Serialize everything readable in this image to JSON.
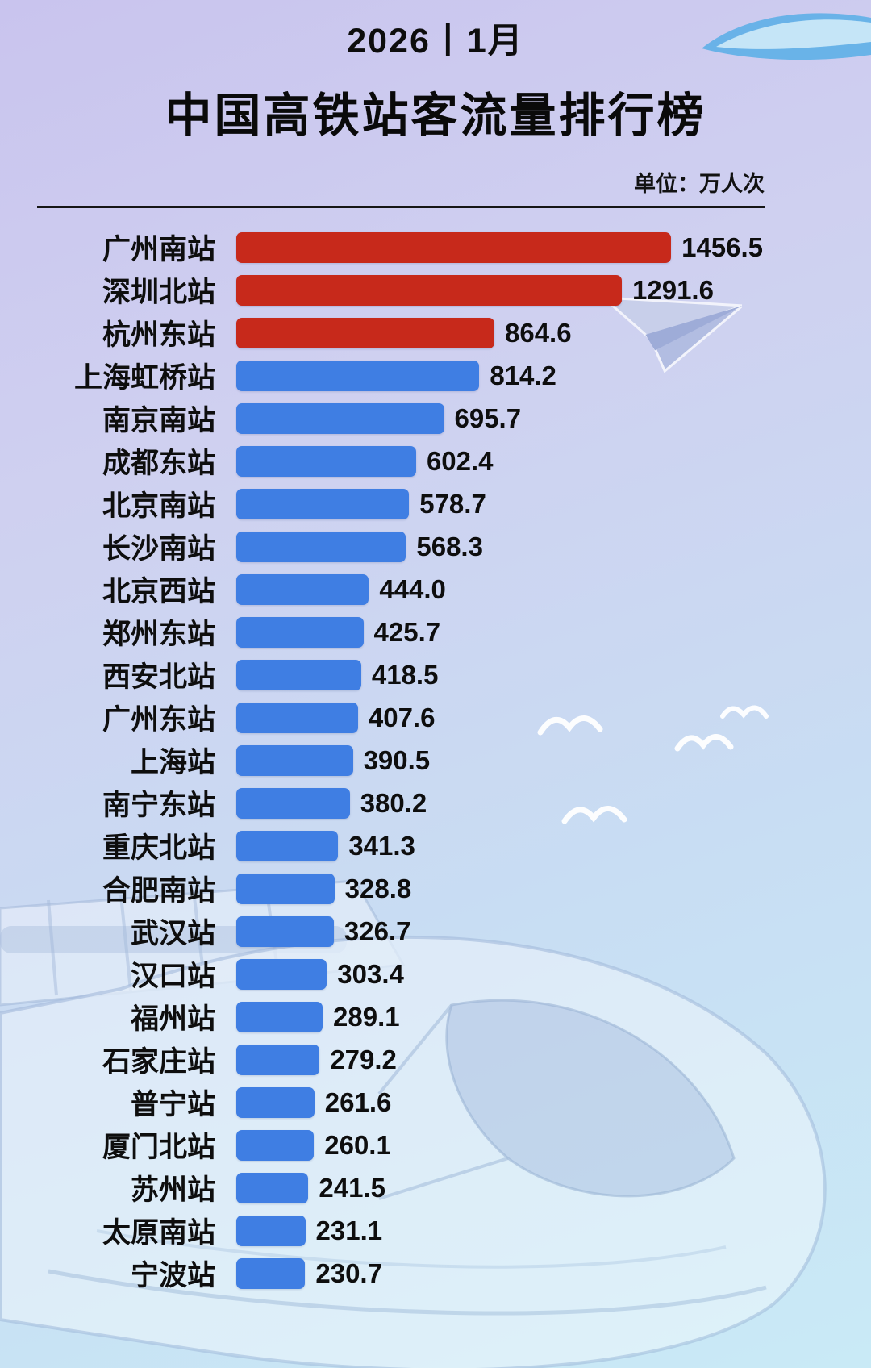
{
  "header": {
    "period": "2026丨1月",
    "title": "中国高铁站客流量排行榜",
    "unit_label": "单位：万人次"
  },
  "chart_data": {
    "type": "bar",
    "orientation": "horizontal",
    "title": "中国高铁站客流量排行榜",
    "subtitle": "2026丨1月",
    "unit": "万人次",
    "xlim": [
      0,
      1500
    ],
    "grid": false,
    "legend_position": "none",
    "highlight_top_n": 3,
    "colors": {
      "top3": "#c7291b",
      "default": "#3f7ee3",
      "text": "#0e0e0e"
    },
    "categories": [
      "广州南站",
      "深圳北站",
      "杭州东站",
      "上海虹桥站",
      "南京南站",
      "成都东站",
      "北京南站",
      "长沙南站",
      "北京西站",
      "郑州东站",
      "西安北站",
      "广州东站",
      "上海站",
      "南宁东站",
      "重庆北站",
      "合肥南站",
      "武汉站",
      "汉口站",
      "福州站",
      "石家庄站",
      "普宁站",
      "厦门北站",
      "苏州站",
      "太原南站",
      "宁波站"
    ],
    "values": [
      1456.5,
      1291.6,
      864.6,
      814.2,
      695.7,
      602.4,
      578.7,
      568.3,
      444.0,
      425.7,
      418.5,
      407.6,
      390.5,
      380.2,
      341.3,
      328.8,
      326.7,
      303.4,
      289.1,
      279.2,
      261.6,
      260.1,
      241.5,
      231.1,
      230.7
    ]
  },
  "decorations": {
    "icons": [
      "crescent-icon",
      "paper-plane-icon",
      "bird-icon",
      "train-icon"
    ]
  }
}
